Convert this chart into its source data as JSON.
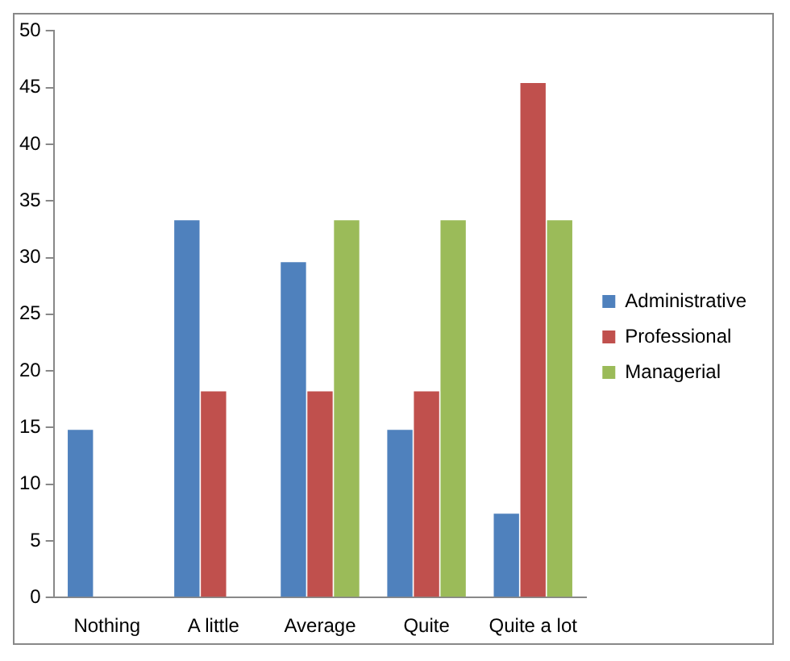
{
  "chart_data": {
    "type": "bar",
    "categories": [
      "Nothing",
      "A little",
      "Average",
      "Quite",
      "Quite a lot"
    ],
    "series": [
      {
        "name": "Administrative",
        "color": "#4f81bd",
        "values": [
          14.8,
          33.3,
          29.6,
          14.8,
          7.4
        ]
      },
      {
        "name": "Professional",
        "color": "#c0504d",
        "values": [
          0,
          18.2,
          18.2,
          18.2,
          45.4
        ]
      },
      {
        "name": "Managerial",
        "color": "#9bbb59",
        "values": [
          0,
          0,
          33.3,
          33.3,
          33.3
        ]
      }
    ],
    "ylim": [
      0,
      50
    ],
    "yticks": [
      0,
      5,
      10,
      15,
      20,
      25,
      30,
      35,
      40,
      45,
      50
    ],
    "grid": false,
    "legend": "right"
  }
}
